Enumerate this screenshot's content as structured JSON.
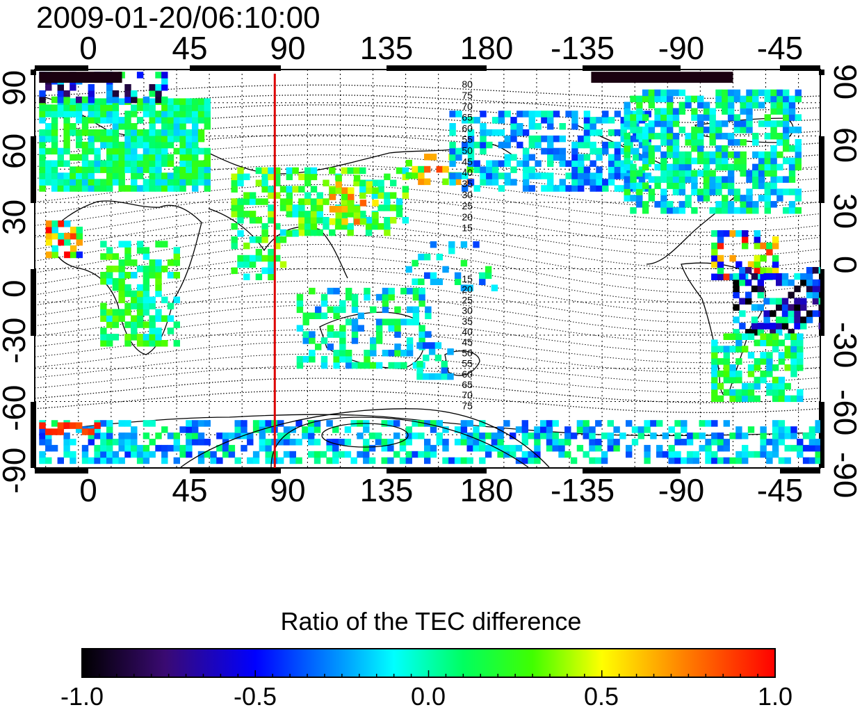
{
  "title": "2009-01-20/06:10:00",
  "top_lon_ticks": [
    "0",
    "45",
    "90",
    "135",
    "180",
    "-135",
    "-90",
    "-45"
  ],
  "bottom_lon_ticks": [
    "0",
    "45",
    "90",
    "135",
    "180",
    "-135",
    "-90",
    "-45"
  ],
  "left_lat_ticks": [
    "90",
    "60",
    "30",
    "0",
    "-30",
    "-60",
    "-90"
  ],
  "right_lat_ticks": [
    "90",
    "60",
    "30",
    "0",
    "-30",
    "-60",
    "-90"
  ],
  "contour_labels_north": [
    "80",
    "75",
    "70",
    "65",
    "60",
    "55",
    "50",
    "45",
    "40",
    "35",
    "30",
    "25",
    "20",
    "15"
  ],
  "contour_labels_south": [
    "15",
    "20",
    "25",
    "30",
    "35",
    "40",
    "45",
    "50",
    "55",
    "60",
    "65",
    "70",
    "75"
  ],
  "colorbar": {
    "label": "Ratio of the TEC difference",
    "min": -1.0,
    "max": 1.0,
    "tick_labels": [
      "-1.0",
      "-0.5",
      "0.0",
      "0.5",
      "1.0"
    ],
    "colors": [
      "#000000",
      "#3a0a72",
      "#0000ff",
      "#00ffff",
      "#00ff00",
      "#ffff00",
      "#ff7f00",
      "#ff0000"
    ]
  },
  "marker_line": {
    "longitude": 90,
    "color": "#dd0000"
  },
  "map": {
    "lon_range": [
      -20,
      340
    ],
    "lat_range": [
      -90,
      90
    ],
    "grid": "dotted"
  }
}
